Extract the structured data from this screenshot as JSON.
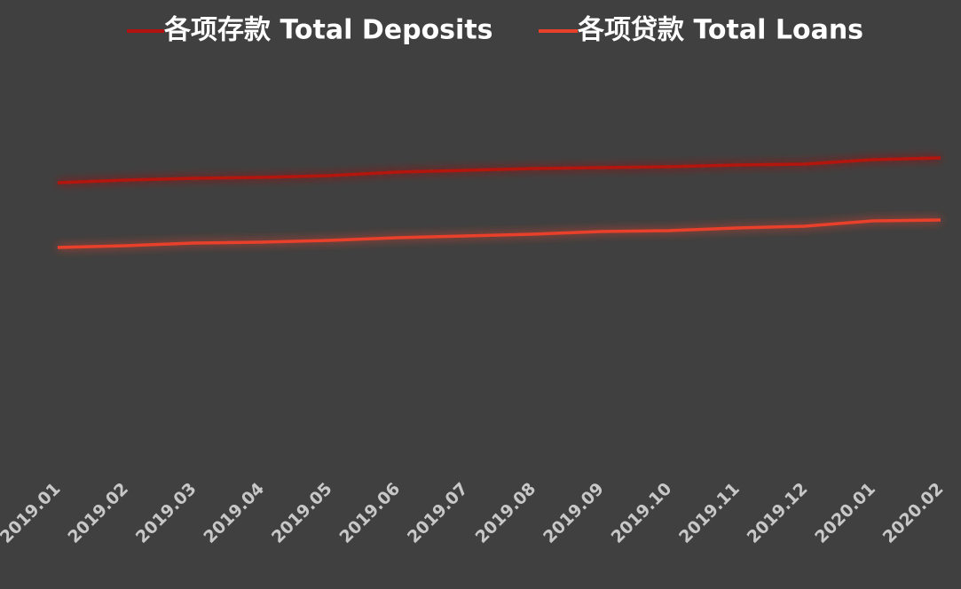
{
  "chart_data": {
    "type": "line",
    "categories": [
      "2019.01",
      "2019.02",
      "2019.03",
      "2019.04",
      "2019.05",
      "2019.06",
      "2019.07",
      "2019.08",
      "2019.09",
      "2019.10",
      "2019.11",
      "2019.12",
      "2020.01",
      "2020.02"
    ],
    "series": [
      {
        "name": "各项存款 Total Deposits",
        "color": "#b3120f",
        "values": [
          334,
          337,
          339,
          340,
          342,
          346,
          348,
          350,
          351,
          352,
          354,
          355,
          360,
          362
        ]
      },
      {
        "name": "各项贷款 Total Loans",
        "color": "#e8402a",
        "values": [
          261,
          263,
          266,
          267,
          269,
          272,
          274,
          276,
          279,
          280,
          283,
          285,
          291,
          292
        ]
      }
    ],
    "ylim": [
      0,
      500
    ]
  }
}
